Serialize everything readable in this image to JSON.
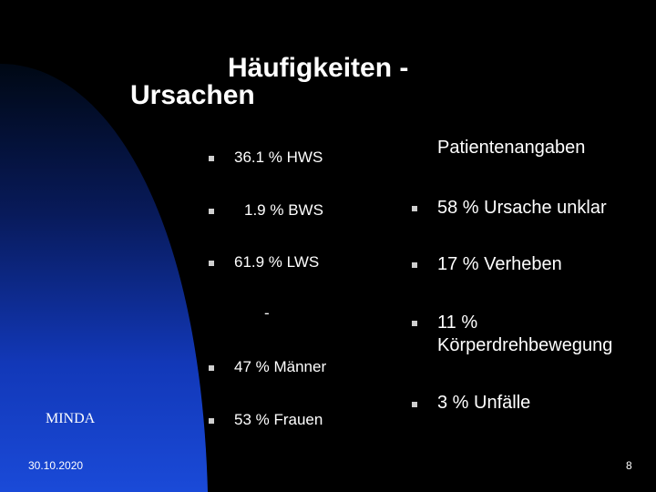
{
  "title": {
    "line1": "Häufigkeiten   -",
    "line2": "Ursachen"
  },
  "left_list": {
    "items": [
      "36.1 % HWS",
      "1.9 % BWS",
      "61.9 % LWS",
      "47 %  Männer",
      "53 %  Frauen"
    ],
    "separator": "-"
  },
  "right_list": {
    "heading": "Patientenangaben",
    "items": [
      "58 % Ursache unklar",
      "17 % Verheben",
      "11 %",
      "Körperdrehbewegung",
      "3 % Unfälle"
    ]
  },
  "footer": {
    "label": "MINDA",
    "date": "30.10.2020",
    "page": "8"
  },
  "colors": {
    "background": "#000000",
    "accent": "#1a4ad8",
    "text": "#ffffff"
  }
}
